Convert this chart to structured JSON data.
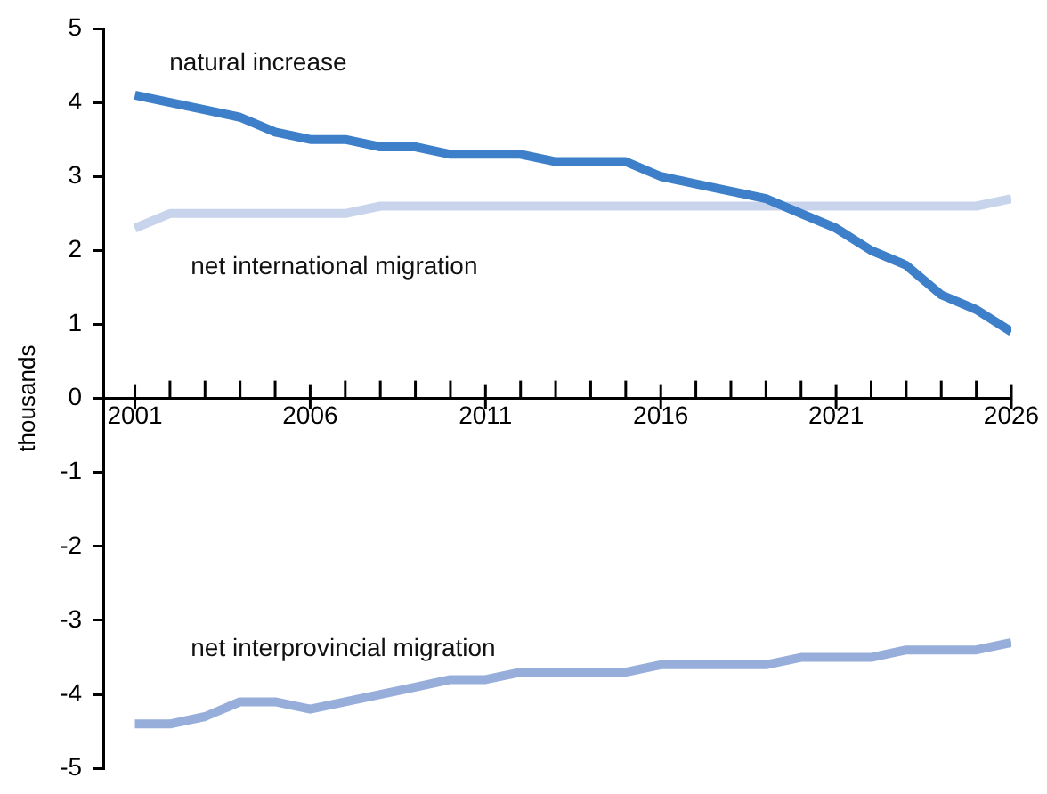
{
  "chart_data": {
    "type": "line",
    "ylabel": "thousands",
    "x": [
      2001,
      2002,
      2003,
      2004,
      2005,
      2006,
      2007,
      2008,
      2009,
      2010,
      2011,
      2012,
      2013,
      2014,
      2015,
      2016,
      2017,
      2018,
      2019,
      2020,
      2021,
      2022,
      2023,
      2024,
      2025,
      2026
    ],
    "series": [
      {
        "name": "natural increase",
        "color": "#3d7fc8",
        "values": [
          4.1,
          4.0,
          3.9,
          3.8,
          3.6,
          3.5,
          3.5,
          3.4,
          3.4,
          3.3,
          3.3,
          3.3,
          3.2,
          3.2,
          3.2,
          3.0,
          2.9,
          2.8,
          2.7,
          2.5,
          2.3,
          2.0,
          1.8,
          1.4,
          1.2,
          0.9
        ]
      },
      {
        "name": "net international migration",
        "color": "#c8d4ec",
        "values": [
          2.3,
          2.5,
          2.5,
          2.5,
          2.5,
          2.5,
          2.5,
          2.6,
          2.6,
          2.6,
          2.6,
          2.6,
          2.6,
          2.6,
          2.6,
          2.6,
          2.6,
          2.6,
          2.6,
          2.6,
          2.6,
          2.6,
          2.6,
          2.6,
          2.6,
          2.7
        ]
      },
      {
        "name": "net interprovincial migration",
        "color": "#97aedb",
        "values": [
          -4.4,
          -4.4,
          -4.3,
          -4.1,
          -4.1,
          -4.2,
          -4.1,
          -4.0,
          -3.9,
          -3.8,
          -3.8,
          -3.7,
          -3.7,
          -3.7,
          -3.7,
          -3.6,
          -3.6,
          -3.6,
          -3.6,
          -3.5,
          -3.5,
          -3.5,
          -3.4,
          -3.4,
          -3.4,
          -3.3
        ]
      }
    ],
    "xlim": [
      2000.1,
      2026
    ],
    "xticks": [
      2001,
      {
        "value": 2002,
        "label": null
      },
      {
        "value": 2003,
        "label": null
      },
      {
        "value": 2004,
        "label": null
      },
      {
        "value": 2005,
        "label": null
      },
      2006,
      {
        "value": 2007,
        "label": null
      },
      {
        "value": 2008,
        "label": null
      },
      {
        "value": 2009,
        "label": null
      },
      {
        "value": 2010,
        "label": null
      },
      2011,
      {
        "value": 2012,
        "label": null
      },
      {
        "value": 2013,
        "label": null
      },
      {
        "value": 2014,
        "label": null
      },
      {
        "value": 2015,
        "label": null
      },
      2016,
      {
        "value": 2017,
        "label": null
      },
      {
        "value": 2018,
        "label": null
      },
      {
        "value": 2019,
        "label": null
      },
      {
        "value": 2020,
        "label": null
      },
      2021,
      {
        "value": 2022,
        "label": null
      },
      {
        "value": 2023,
        "label": null
      },
      {
        "value": 2024,
        "label": null
      },
      {
        "value": 2025,
        "label": null
      },
      2026
    ],
    "ylim": [
      -5,
      5
    ],
    "yticks": [
      -5,
      -4,
      -3,
      -2,
      -1,
      0,
      1,
      2,
      3,
      4,
      5
    ],
    "grid": false,
    "legend": false,
    "marker": "none",
    "line_style": "solid"
  }
}
